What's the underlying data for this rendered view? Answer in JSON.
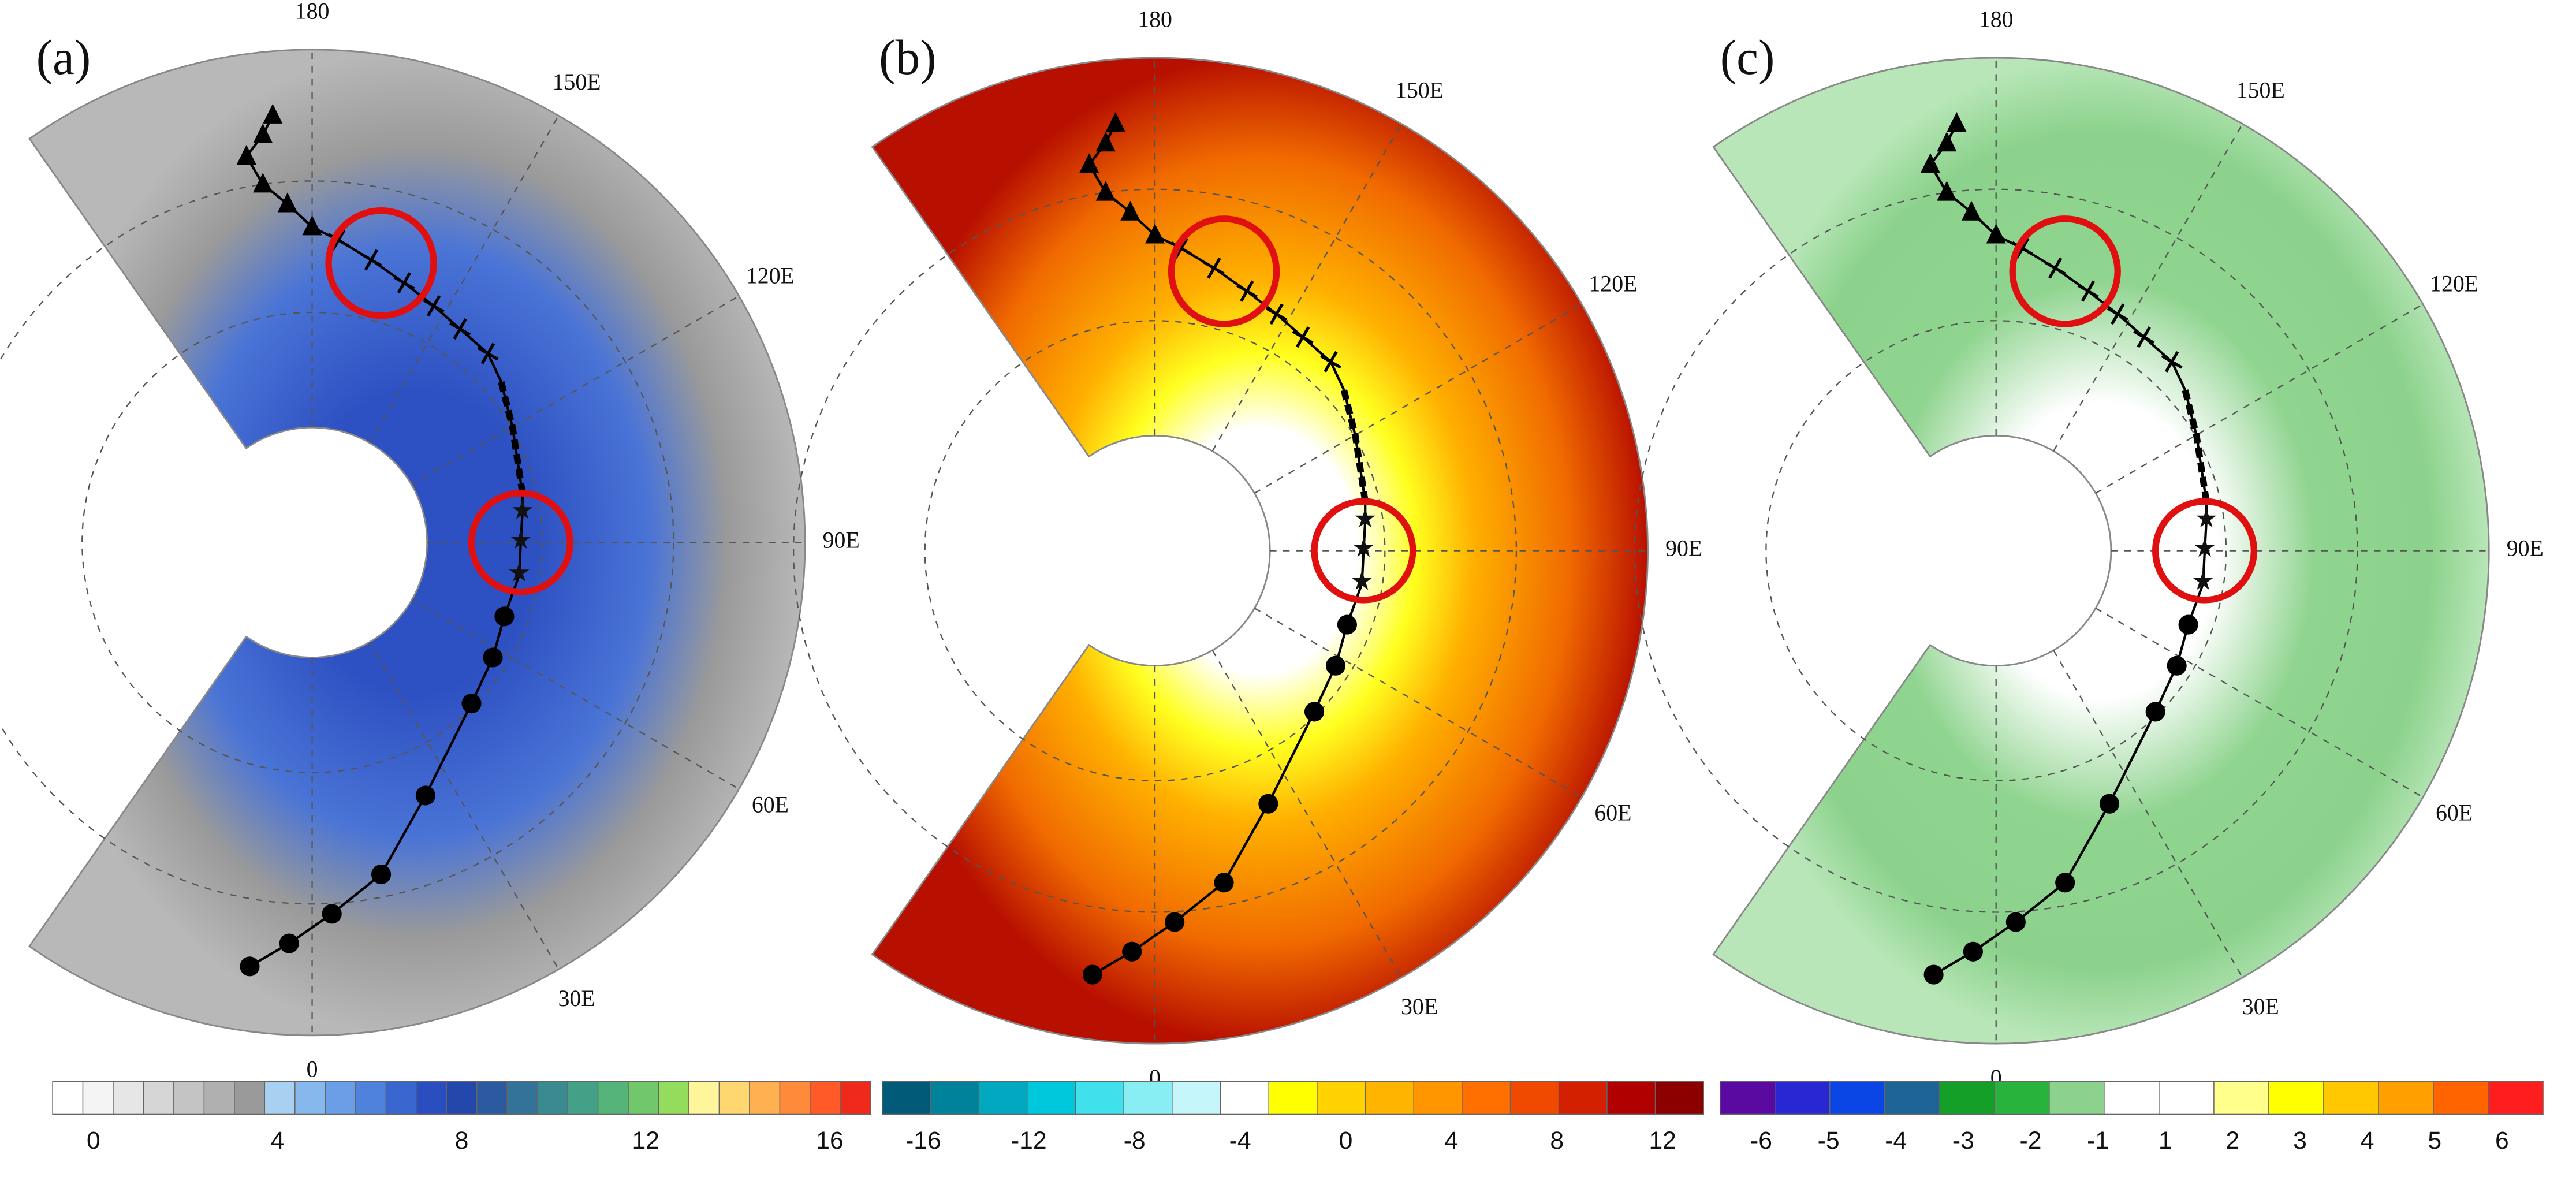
{
  "panels": [
    {
      "label": "(a)",
      "lon_labels": [
        "180",
        "150E",
        "120E",
        "90E",
        "60E",
        "30E",
        "0"
      ],
      "colorbar": {
        "ticks": [
          0,
          4,
          8,
          12,
          16
        ],
        "colors": [
          "#ffffff",
          "#f4f4f4",
          "#e6e6e6",
          "#d6d6d6",
          "#c4c4c4",
          "#b0b0b0",
          "#9a9a9a",
          "#a8d0f0",
          "#86b8ee",
          "#6a9ee6",
          "#4f82dc",
          "#3a66cf",
          "#2a4dbf",
          "#2347aa",
          "#2c5aa0",
          "#33739a",
          "#3a8a92",
          "#45a088",
          "#55b47a",
          "#70c86a",
          "#94dc5c",
          "#fff59a",
          "#ffd770",
          "#ffb050",
          "#ff8a3a",
          "#ff5a28",
          "#f02a1a"
        ]
      }
    },
    {
      "label": "(b)",
      "lon_labels": [
        "180",
        "150E",
        "120E",
        "90E",
        "60E",
        "30E",
        "0"
      ],
      "colorbar": {
        "ticks": [
          -16,
          -12,
          -8,
          -4,
          0,
          4,
          8,
          12
        ],
        "colors": [
          "#005a78",
          "#00829a",
          "#00a8c0",
          "#00c8dc",
          "#40e0ec",
          "#88eef4",
          "#c4f6fa",
          "#ffffff",
          "#ffff00",
          "#ffd200",
          "#ffb400",
          "#ff9600",
          "#ff7000",
          "#f04a00",
          "#d22000",
          "#b00000",
          "#8c0000"
        ]
      }
    },
    {
      "label": "(c)",
      "lon_labels": [
        "180",
        "150E",
        "120E",
        "90E",
        "60E",
        "30E",
        "0"
      ],
      "colorbar": {
        "ticks": [
          -6,
          -5,
          -4,
          -3,
          -2,
          -1,
          1,
          2,
          3,
          4,
          5,
          6
        ],
        "colors": [
          "#5a0aa0",
          "#2828d2",
          "#0a46e6",
          "#1e6496",
          "#14a028",
          "#28b43c",
          "#8cd28c",
          "#ffffff",
          "#ffffff",
          "#ffff8c",
          "#ffff00",
          "#ffc800",
          "#ffa000",
          "#ff6400",
          "#ff1e1e"
        ]
      }
    }
  ]
}
